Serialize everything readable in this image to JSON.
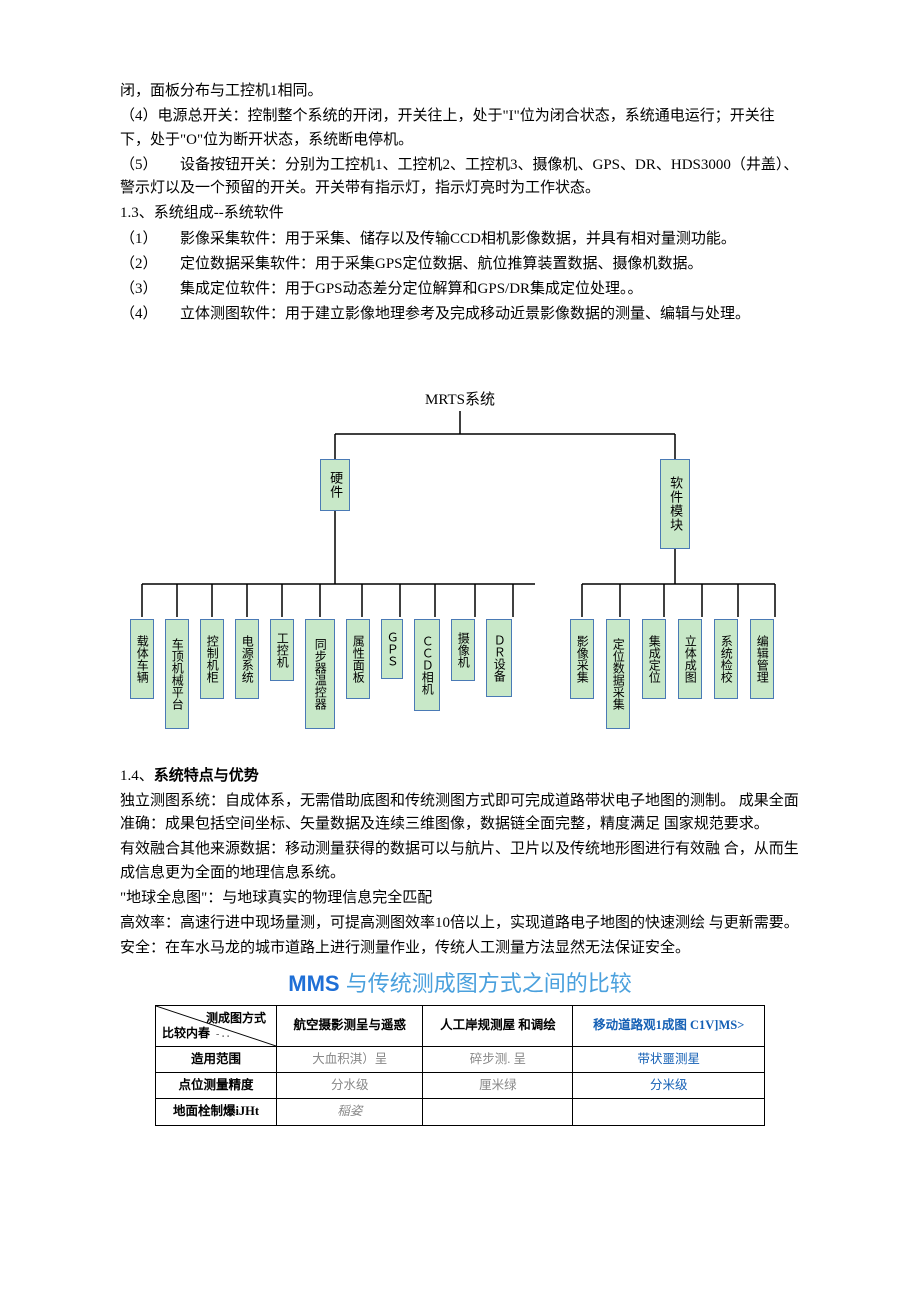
{
  "text": {
    "p1": "闭，面板分布与工控机1相同。",
    "p2": "（4）电源总开关：控制整个系统的开闭，开关往上，处于\"I\"位为闭合状态，系统通电运行；开关往下，处于\"O\"位为断开状态，系统断电停机。",
    "p3": "（5）　　设备按钮开关：分别为工控机1、工控机2、工控机3、摄像机、GPS、DR、HDS3000（井盖）、警示灯以及一个预留的开关。开关带有指示灯，指示灯亮时为工作状态。",
    "p4": "1.3、系统组成--系统软件",
    "p5": "（1）　　影像采集软件：用于采集、储存以及传输CCD相机影像数据，并具有相对量测功能。",
    "p6": "（2）　　定位数据采集软件：用于采集GPS定位数据、航位推算装置数据、摄像机数据。",
    "p7": "（3）　　集成定位软件：用于GPS动态差分定位解算和GPS/DR集成定位处理。。",
    "p8": "（4）　　立体测图软件：用于建立影像地理参考及完成移动近景影像数据的测量、编辑与处理。",
    "sec14_prefix": "1.4、",
    "sec14_title": "系统特点与优势",
    "p9": "独立测图系统：自成体系，无需借助底图和传统测图方式即可完成道路带状电子地图的测制。 成果全面准确：成果包括空间坐标、矢量数据及连续三维图像，数据链全面完整，精度满足 国家规范要求。",
    "p10": "有效融合其他来源数据：移动测量获得的数据可以与航片、卫片以及传统地形图进行有效融 合，从而生成信息更为全面的地理信息系统。",
    "p11": "\"地球全息图\"：与地球真实的物理信息完全匹配",
    "p12": "高效率：高速行进中现场量测，可提高测图效率10倍以上，实现道路电子地图的快速测绘 与更新需要。",
    "p13": "安全：在车水马龙的城市道路上进行测量作业，传统人工测量方法显然无法保证安全。"
  },
  "diagram": {
    "title": "MRTS系统",
    "root_connector_color": "#000000",
    "node_border": "#4a7ab5",
    "node_fill": "#c8e8c8",
    "mid": {
      "hw": "硬件",
      "sw": "软件模块"
    },
    "hw_leaves": [
      "载体车辆",
      "车顶机械平台",
      "控制机柜",
      "电源系统",
      "工控机",
      "同步器温控器",
      "属性面板",
      "ＧＰＳ",
      "ＣＣＤ相机",
      "摄像机",
      "ＤＲ设备"
    ],
    "sw_leaves": [
      "影像采集",
      "定位数据采集",
      "集成定位",
      "立体成图",
      "系统检校",
      "编辑管理"
    ]
  },
  "compare": {
    "heading_mms": "MMS",
    "heading_rest": " 与传统测成图方式之间的比较",
    "diag_top": "测成图方式",
    "diag_bottom": "比较内春",
    "diag_mid": "- . .",
    "cols": [
      "航空摄影测呈与遥惑",
      "人工岸规测屋 和调绘",
      "移动道路观1成图 C1V]MS>"
    ],
    "rows": [
      {
        "label": "造用范围",
        "cells": [
          "大血积淇）呈",
          "碎步测. 呈",
          "带状噩测星"
        ],
        "styles": [
          "gray",
          "gray",
          "blue"
        ]
      },
      {
        "label": "点位测量精度",
        "cells": [
          "分水级",
          "厘米绿",
          "分米级"
        ],
        "styles": [
          "gray",
          "gray",
          "blue"
        ]
      },
      {
        "label": "地面栓制爆iJHt",
        "cells": [
          "稲姿",
          "",
          ""
        ],
        "styles": [
          "gray italic",
          "",
          ""
        ]
      }
    ],
    "col3_color": "#1560b5",
    "gray_color": "#888888"
  }
}
